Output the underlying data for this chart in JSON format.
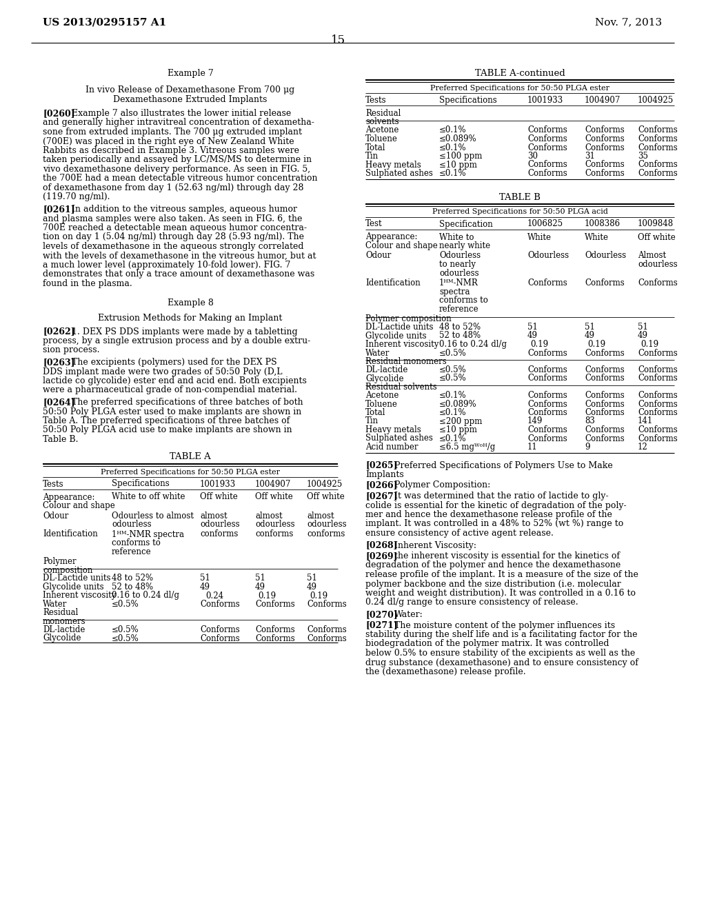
{
  "bg_color": "#ffffff",
  "header_left": "US 2013/0295157 A1",
  "header_right": "Nov. 7, 2013",
  "page_number": "15"
}
